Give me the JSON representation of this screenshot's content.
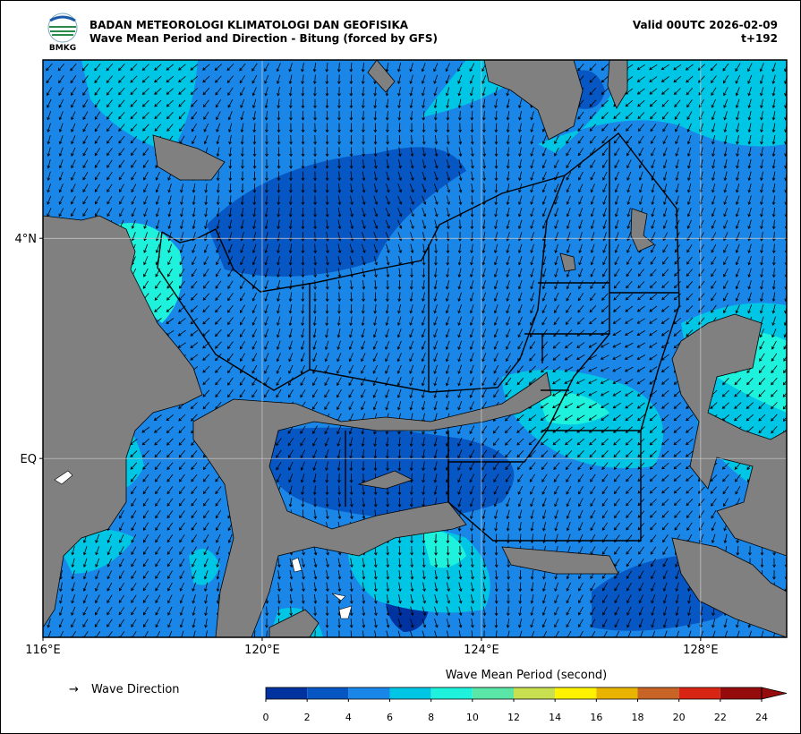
{
  "header": {
    "title": "BADAN METEOROLOGI KLIMATOLOGI DAN GEOFISIKA",
    "subtitle": "Wave Mean Period and Direction - Bitung (forced by GFS)",
    "valid": "Valid 00UTC 2026-02-09",
    "lead": "t+192",
    "logo": "BMKG"
  },
  "map": {
    "xlim": [
      116,
      129.57
    ],
    "ylim": [
      -3.25,
      7.24
    ],
    "xticks": [
      {
        "value": 116,
        "label": "116°E"
      },
      {
        "value": 120,
        "label": "120°E"
      },
      {
        "value": 124,
        "label": "124°E"
      },
      {
        "value": 128,
        "label": "128°E"
      }
    ],
    "yticks": [
      {
        "value": 0,
        "label": "EQ"
      },
      {
        "value": 4,
        "label": "4°N"
      }
    ],
    "grid": true
  },
  "legend": {
    "symbol": "→",
    "label": "Wave Direction"
  },
  "colorbar": {
    "title": "Wave Mean Period (second)",
    "ticks": [
      0,
      2,
      4,
      6,
      8,
      10,
      12,
      14,
      16,
      18,
      20,
      22,
      24
    ],
    "colors": [
      "#0033a0",
      "#0656c4",
      "#1a87e8",
      "#00c6e6",
      "#1ef2dc",
      "#5ae6a6",
      "#c8e050",
      "#fff200",
      "#e8b400",
      "#c86426",
      "#d82412",
      "#960c0c"
    ]
  }
}
